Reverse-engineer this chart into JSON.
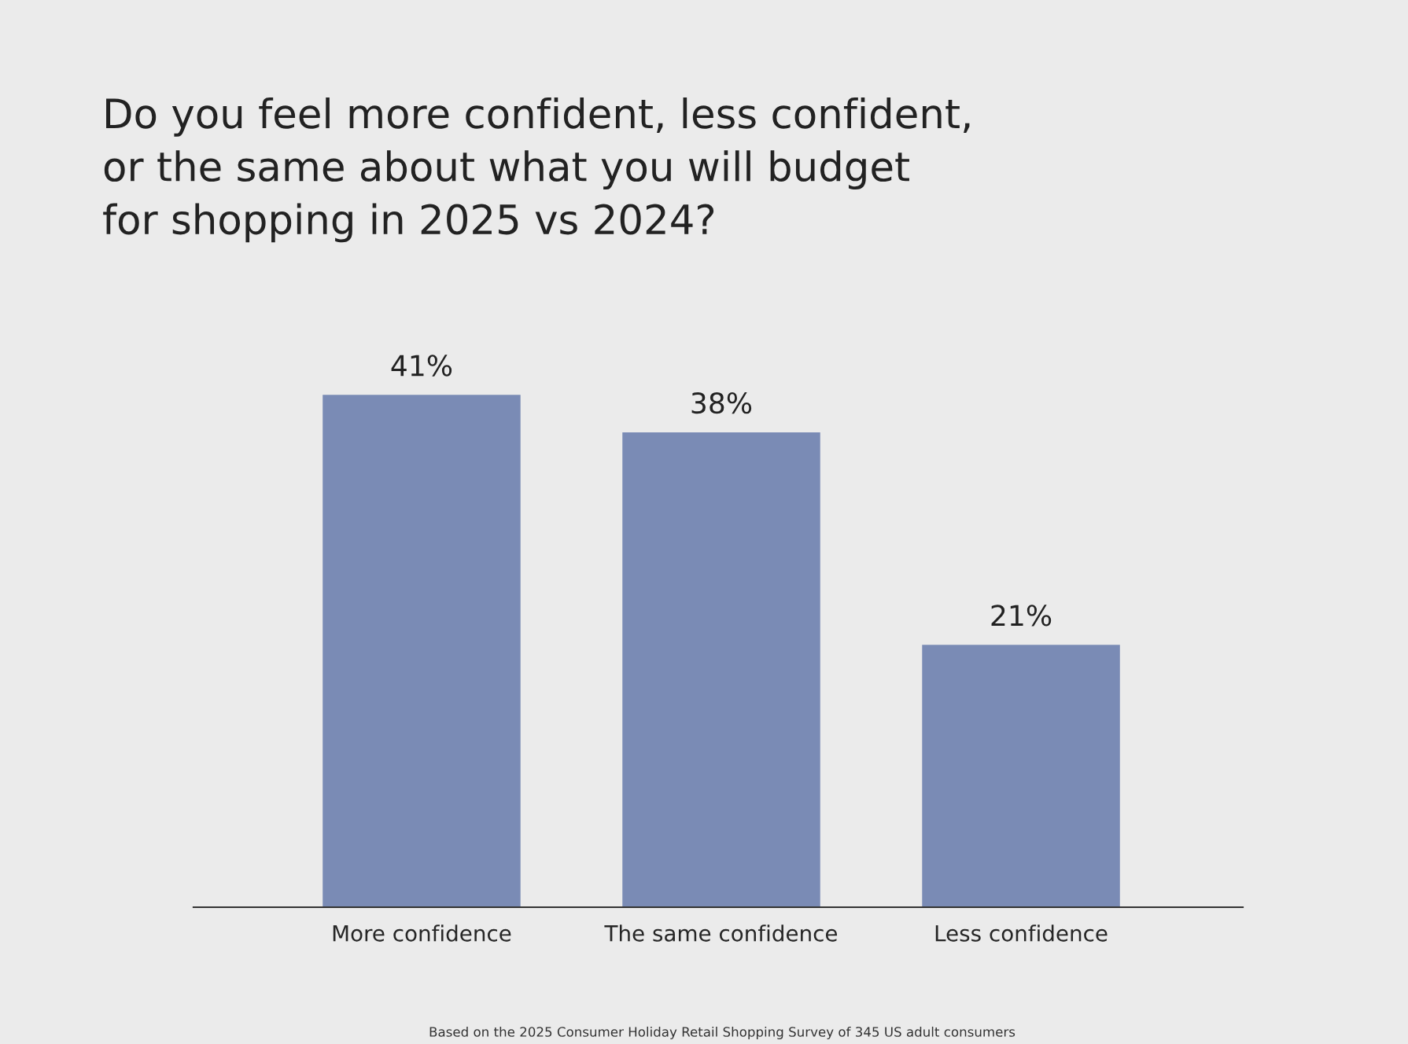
{
  "chart_data": {
    "type": "bar",
    "title": "Do you feel more confident, less confident,\nor the same about what you will budget\nfor shopping in 2025 vs 2024?",
    "categories": [
      "More confidence",
      "The same confidence",
      "Less confidence"
    ],
    "values": [
      41,
      38,
      21
    ],
    "color": "#7a8bb5",
    "data_labels": true,
    "value_labels": [
      "41%",
      "38%",
      "21%"
    ],
    "grid": false,
    "tick_labels": "x",
    "annotations": [
      "Based on the 2025 Consumer Holiday Retail Shopping Survey of 345 US adult consumers"
    ]
  }
}
